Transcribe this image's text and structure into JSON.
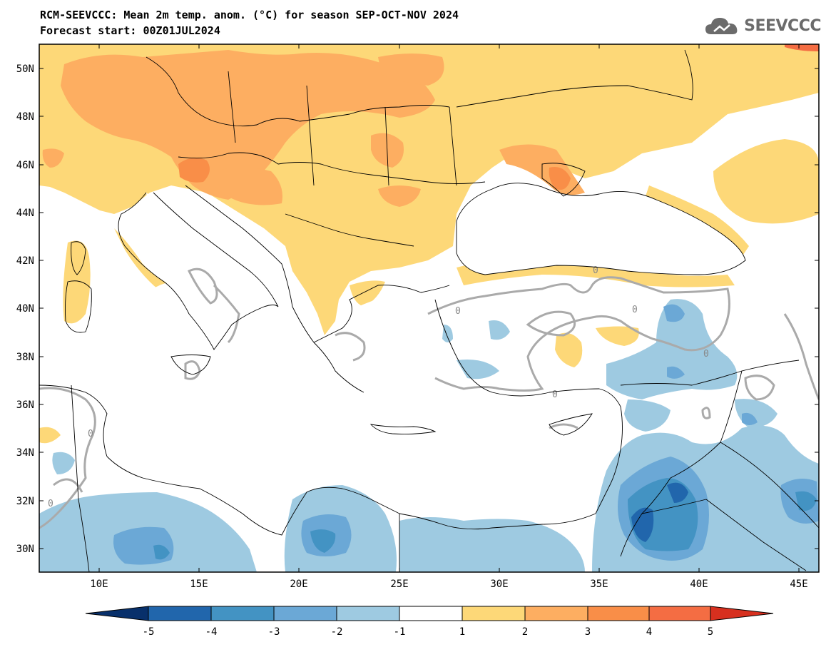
{
  "header": {
    "title": "RCM-SEEVCCC: Mean 2m temp. anom. (°C) for season SEP-OCT-NOV 2024",
    "subtitle": "Forecast start: 00Z01JUL2024"
  },
  "logo": {
    "text": "SEEVCCC",
    "icon": "cloud-logo-icon"
  },
  "map": {
    "lon_range": [
      7,
      46
    ],
    "lat_range": [
      29,
      51
    ],
    "x_ticks": [
      "10E",
      "15E",
      "20E",
      "25E",
      "30E",
      "35E",
      "40E",
      "45E"
    ],
    "y_ticks": [
      "50N",
      "48N",
      "46N",
      "44N",
      "42N",
      "40N",
      "38N",
      "36N",
      "34N",
      "32N",
      "30N"
    ],
    "contour_label": "0"
  },
  "colorbar": {
    "labels": [
      "-5",
      "-4",
      "-3",
      "-2",
      "-1",
      "1",
      "2",
      "3",
      "4",
      "5"
    ],
    "colors": [
      "#08306b",
      "#2166ac",
      "#4393c3",
      "#6ba8d6",
      "#9ecae1",
      "#ffffff",
      "#fdd878",
      "#fdae61",
      "#f98e48",
      "#f46d43",
      "#d7301f",
      "#c01010"
    ]
  },
  "palette": {
    "anom_1_2": "#fdd878",
    "anom_2_3": "#fdae61",
    "anom_3_4": "#f98e48",
    "anom_4_5": "#f46d43",
    "anom_m1_m2": "#9ecae1",
    "anom_m2_m3": "#6ba8d6",
    "anom_m3_m4": "#4393c3",
    "anom_m4_m5": "#2166ac",
    "contour_zero": "#aaaaaa"
  }
}
